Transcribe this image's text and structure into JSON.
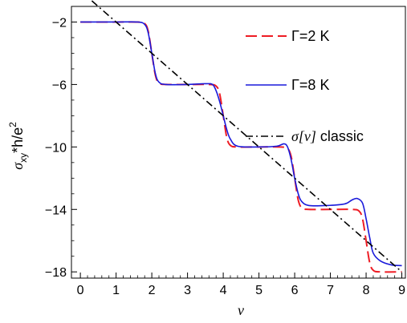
{
  "chart_data": {
    "type": "line",
    "xlabel": "ν",
    "ylabel": {
      "main": "σ",
      "sub": "xy",
      "rest": "*h/e",
      "sup": "2"
    },
    "xlim": [
      -0.25,
      9.1
    ],
    "ylim": [
      -18.4,
      -1.0
    ],
    "xticks": [
      0,
      1,
      2,
      3,
      4,
      5,
      6,
      7,
      8,
      9
    ],
    "xtick_labels": [
      "0",
      "1",
      "2",
      "3",
      "4",
      "5",
      "6",
      "7",
      "8",
      "9"
    ],
    "yticks": [
      -2,
      -6,
      -10,
      -14,
      -18
    ],
    "ytick_labels": [
      "−2",
      "−6",
      "−10",
      "−14",
      "−18"
    ],
    "grid": false,
    "legend_position": "top-right (inside, stacked)",
    "series": [
      {
        "name": "Γ=2 K",
        "legend_label": "Γ=2 K",
        "color": "#ee1c24",
        "style": "dashed",
        "x": [
          0,
          1.0,
          1.6,
          1.8,
          1.9,
          2.0,
          2.1,
          2.2,
          2.4,
          3.0,
          3.6,
          3.8,
          3.9,
          4.0,
          4.1,
          4.2,
          4.4,
          5.0,
          5.6,
          5.8,
          5.9,
          6.0,
          6.1,
          6.2,
          6.4,
          7.0,
          7.6,
          7.8,
          7.9,
          8.0,
          8.1,
          8.2,
          8.4,
          9.0
        ],
        "y": [
          -2.0,
          -2.0,
          -2.0,
          -2.1,
          -2.6,
          -4.0,
          -5.4,
          -5.9,
          -6.0,
          -6.0,
          -6.0,
          -6.1,
          -6.6,
          -8.0,
          -9.4,
          -9.9,
          -10.0,
          -10.0,
          -10.0,
          -10.1,
          -10.6,
          -12.0,
          -13.4,
          -13.9,
          -14.0,
          -14.0,
          -14.0,
          -14.1,
          -14.6,
          -16.0,
          -17.4,
          -17.9,
          -18.0,
          -18.0
        ]
      },
      {
        "name": "Γ=8 K",
        "legend_label": "Γ=8 K",
        "color": "#1a1adb",
        "style": "solid",
        "x": [
          0,
          1.0,
          1.6,
          1.8,
          1.9,
          2.0,
          2.1,
          2.2,
          2.4,
          3.0,
          3.5,
          3.7,
          3.8,
          3.9,
          4.0,
          4.1,
          4.2,
          4.4,
          5.0,
          5.5,
          5.7,
          5.8,
          5.9,
          6.0,
          6.1,
          6.2,
          6.4,
          6.9,
          7.4,
          7.6,
          7.75,
          7.9,
          8.0,
          8.1,
          8.2,
          8.4,
          8.7,
          9.0
        ],
        "y": [
          -2.0,
          -2.0,
          -2.0,
          -2.15,
          -2.7,
          -4.0,
          -5.3,
          -5.85,
          -6.0,
          -6.0,
          -5.95,
          -6.0,
          -6.4,
          -7.1,
          -8.0,
          -8.9,
          -9.5,
          -9.95,
          -10.0,
          -9.95,
          -9.8,
          -10.0,
          -10.8,
          -12.0,
          -13.0,
          -13.5,
          -13.75,
          -13.75,
          -13.65,
          -13.4,
          -13.3,
          -13.6,
          -14.6,
          -15.8,
          -16.8,
          -17.3,
          -17.55,
          -17.6
        ]
      },
      {
        "name": "σ[ν] classic",
        "legend_label": {
          "sigma": "σ[ν]",
          "rest": " classic"
        },
        "color": "#000000",
        "style": "dashdot",
        "x": [
          0,
          9
        ],
        "y": [
          0,
          -18
        ]
      }
    ]
  }
}
